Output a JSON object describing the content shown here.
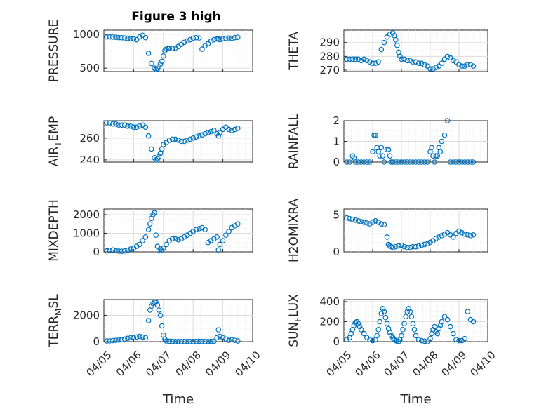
{
  "figure": {
    "title": "Figure 3 high",
    "x_axis_label": "Time",
    "marker_color": "#0072bd"
  },
  "chart_data": [
    {
      "type": "scatter",
      "title": "Figure 3 high",
      "ylabel": "PRESSURE",
      "xlabel": "",
      "xlim": [
        0,
        5
      ],
      "ylim": [
        450,
        1060
      ],
      "yticks": [
        500,
        1000
      ],
      "xticks": [
        "04/05",
        "04/06",
        "04/07",
        "04/08",
        "04/09",
        "04/10"
      ],
      "show_xticklabels": false,
      "x": [
        0.1,
        0.2,
        0.3,
        0.4,
        0.5,
        0.6,
        0.7,
        0.8,
        0.9,
        1.0,
        1.1,
        1.2,
        1.3,
        1.4,
        1.5,
        1.6,
        1.7,
        1.75,
        1.8,
        1.85,
        1.9,
        1.95,
        2.0,
        2.05,
        2.1,
        2.15,
        2.2,
        2.3,
        2.4,
        2.5,
        2.6,
        2.7,
        2.8,
        2.9,
        3.0,
        3.1,
        3.2,
        3.3,
        3.4,
        3.5,
        3.6,
        3.7,
        3.8,
        3.85,
        3.9,
        4.0,
        4.1,
        4.2,
        4.3,
        4.4,
        4.5
      ],
      "y": [
        960,
        960,
        958,
        955,
        950,
        948,
        945,
        940,
        935,
        930,
        920,
        960,
        985,
        950,
        720,
        570,
        500,
        480,
        490,
        520,
        560,
        600,
        680,
        760,
        780,
        790,
        790,
        790,
        795,
        820,
        850,
        880,
        900,
        920,
        940,
        950,
        945,
        780,
        830,
        860,
        900,
        920,
        930,
        930,
        920,
        935,
        940,
        945,
        940,
        950,
        955
      ],
      "grid": true
    },
    {
      "type": "scatter",
      "title": "",
      "ylabel": "THETA",
      "xlabel": "",
      "xlim": [
        0,
        5
      ],
      "ylim": [
        269,
        299
      ],
      "yticks": [
        270,
        280,
        290
      ],
      "xticks": [
        "04/05",
        "04/06",
        "04/07",
        "04/08",
        "04/09",
        "04/10"
      ],
      "show_xticklabels": false,
      "x": [
        0.1,
        0.2,
        0.3,
        0.4,
        0.5,
        0.6,
        0.7,
        0.8,
        0.9,
        1.0,
        1.1,
        1.2,
        1.3,
        1.4,
        1.5,
        1.6,
        1.7,
        1.75,
        1.8,
        1.85,
        1.9,
        1.95,
        2.0,
        2.1,
        2.2,
        2.3,
        2.4,
        2.5,
        2.6,
        2.7,
        2.8,
        2.9,
        3.0,
        3.1,
        3.2,
        3.3,
        3.4,
        3.5,
        3.6,
        3.7,
        3.8,
        3.9,
        4.0,
        4.1,
        4.2,
        4.3,
        4.4,
        4.5
      ],
      "y": [
        278,
        278,
        278,
        278,
        278,
        277,
        278,
        277,
        276,
        275,
        275,
        276,
        285,
        290,
        294,
        296,
        297,
        295,
        292,
        288,
        283,
        280,
        278,
        278,
        277,
        277,
        276,
        276,
        275,
        275,
        274,
        273,
        271,
        271,
        272,
        273,
        275,
        278,
        280,
        279,
        277,
        276,
        274,
        273,
        273,
        274,
        274,
        273
      ],
      "grid": true
    },
    {
      "type": "scatter",
      "title": "",
      "ylabel": "AIR_TEMP",
      "xlabel": "",
      "xlim": [
        0,
        5
      ],
      "ylim": [
        238,
        276
      ],
      "yticks": [
        240,
        260
      ],
      "xticks": [
        "04/05",
        "04/06",
        "04/07",
        "04/08",
        "04/09",
        "04/10"
      ],
      "show_xticklabels": false,
      "x": [
        0.1,
        0.2,
        0.3,
        0.4,
        0.5,
        0.6,
        0.7,
        0.8,
        0.9,
        1.0,
        1.1,
        1.2,
        1.3,
        1.4,
        1.5,
        1.6,
        1.7,
        1.75,
        1.8,
        1.85,
        1.9,
        1.95,
        2.0,
        2.1,
        2.2,
        2.3,
        2.4,
        2.5,
        2.6,
        2.7,
        2.8,
        2.9,
        3.0,
        3.1,
        3.2,
        3.3,
        3.4,
        3.5,
        3.6,
        3.7,
        3.8,
        3.85,
        3.9,
        4.0,
        4.1,
        4.2,
        4.3,
        4.4,
        4.5
      ],
      "y": [
        274,
        274,
        273,
        273,
        272,
        272,
        272,
        271,
        271,
        270,
        270,
        271,
        272,
        270,
        262,
        250,
        242,
        240,
        241,
        243,
        246,
        250,
        254,
        256,
        258,
        259,
        259,
        258,
        257,
        257,
        258,
        259,
        260,
        261,
        262,
        263,
        264,
        265,
        266,
        267,
        264,
        262,
        265,
        268,
        270,
        268,
        267,
        268,
        269
      ],
      "grid": true
    },
    {
      "type": "scatter",
      "title": "",
      "ylabel": "RAINFALL",
      "xlabel": "",
      "xlim": [
        0,
        5
      ],
      "ylim": [
        0,
        2
      ],
      "yticks": [
        0,
        1,
        2
      ],
      "xticks": [
        "04/05",
        "04/06",
        "04/07",
        "04/08",
        "04/09",
        "04/10"
      ],
      "show_xticklabels": false,
      "x": [
        0.1,
        0.2,
        0.3,
        0.35,
        0.4,
        0.5,
        0.6,
        0.7,
        0.8,
        0.9,
        1.0,
        1.05,
        1.1,
        1.15,
        1.2,
        1.25,
        1.3,
        1.35,
        1.4,
        1.5,
        1.55,
        1.6,
        1.65,
        1.7,
        1.8,
        1.9,
        2.0,
        2.1,
        2.2,
        2.3,
        2.4,
        2.5,
        2.6,
        2.7,
        2.8,
        2.9,
        3.0,
        3.05,
        3.1,
        3.15,
        3.2,
        3.25,
        3.3,
        3.35,
        3.4,
        3.5,
        3.6,
        3.7,
        3.8,
        3.9,
        4.0,
        4.1,
        4.2,
        4.3,
        4.4,
        4.5
      ],
      "y": [
        0,
        0,
        0.3,
        0.2,
        0,
        0,
        0,
        0,
        0,
        0,
        0.5,
        1.3,
        1.3,
        0.7,
        0.5,
        0.3,
        0.7,
        0.3,
        0,
        0.6,
        0.6,
        0.3,
        0,
        0,
        0,
        0,
        0,
        0,
        0,
        0,
        0,
        0,
        0,
        0,
        0,
        0,
        0.5,
        0.7,
        0.3,
        0,
        0.3,
        0.3,
        0.7,
        0.5,
        1.0,
        1.3,
        2.0,
        0,
        0,
        0,
        0,
        0,
        0,
        0,
        0,
        0
      ],
      "grid": true
    },
    {
      "type": "scatter",
      "title": "",
      "ylabel": "MIXDEPTH",
      "xlabel": "",
      "xlim": [
        0,
        5
      ],
      "ylim": [
        0,
        2300
      ],
      "yticks": [
        0,
        1000,
        2000
      ],
      "xticks": [
        "04/05",
        "04/06",
        "04/07",
        "04/08",
        "04/09",
        "04/10"
      ],
      "show_xticklabels": false,
      "x": [
        0.1,
        0.2,
        0.3,
        0.4,
        0.5,
        0.6,
        0.7,
        0.8,
        0.9,
        1.0,
        1.1,
        1.2,
        1.3,
        1.4,
        1.5,
        1.55,
        1.6,
        1.65,
        1.7,
        1.75,
        1.8,
        1.85,
        1.9,
        1.95,
        2.0,
        2.1,
        2.2,
        2.3,
        2.4,
        2.5,
        2.6,
        2.7,
        2.8,
        2.9,
        3.0,
        3.1,
        3.2,
        3.3,
        3.4,
        3.5,
        3.6,
        3.7,
        3.8,
        3.85,
        3.9,
        4.0,
        4.1,
        4.2,
        4.3,
        4.4,
        4.5
      ],
      "y": [
        50,
        80,
        100,
        60,
        40,
        30,
        50,
        80,
        150,
        200,
        300,
        400,
        600,
        800,
        1200,
        1500,
        1800,
        2000,
        2100,
        900,
        300,
        100,
        150,
        100,
        200,
        400,
        600,
        700,
        700,
        650,
        700,
        800,
        900,
        1000,
        1100,
        1200,
        1250,
        1300,
        1200,
        500,
        600,
        700,
        800,
        100,
        400,
        600,
        900,
        1100,
        1300,
        1400,
        1500
      ],
      "grid": true
    },
    {
      "type": "scatter",
      "title": "",
      "ylabel": "H2OMIXRA",
      "xlabel": "",
      "xlim": [
        0,
        5
      ],
      "ylim": [
        0,
        5.8
      ],
      "yticks": [
        0,
        5
      ],
      "xticks": [
        "04/05",
        "04/06",
        "04/07",
        "04/08",
        "04/09",
        "04/10"
      ],
      "show_xticklabels": false,
      "x": [
        0.1,
        0.2,
        0.3,
        0.4,
        0.5,
        0.6,
        0.7,
        0.8,
        0.9,
        1.0,
        1.1,
        1.2,
        1.3,
        1.4,
        1.5,
        1.55,
        1.6,
        1.65,
        1.7,
        1.8,
        1.9,
        2.0,
        2.1,
        2.2,
        2.3,
        2.4,
        2.5,
        2.6,
        2.7,
        2.8,
        2.9,
        3.0,
        3.1,
        3.2,
        3.3,
        3.4,
        3.5,
        3.6,
        3.7,
        3.8,
        3.9,
        4.0,
        4.1,
        4.2,
        4.3,
        4.4,
        4.5
      ],
      "y": [
        4.6,
        4.5,
        4.4,
        4.3,
        4.2,
        4.1,
        4.0,
        3.9,
        3.8,
        4.0,
        4.2,
        4.0,
        3.8,
        3.7,
        2.0,
        1.0,
        0.8,
        0.7,
        0.6,
        0.7,
        0.8,
        0.9,
        0.7,
        0.6,
        0.6,
        0.7,
        0.7,
        0.8,
        0.9,
        1.0,
        1.1,
        1.3,
        1.5,
        1.8,
        2.0,
        2.2,
        2.4,
        2.6,
        2.3,
        2.0,
        2.5,
        2.8,
        2.6,
        2.4,
        2.3,
        2.2,
        2.3
      ],
      "grid": true
    },
    {
      "type": "scatter",
      "title": "",
      "ylabel": "TERR_MSL",
      "xlabel": "Time",
      "xlim": [
        0,
        5
      ],
      "ylim": [
        0,
        3200
      ],
      "yticks": [
        0,
        2000
      ],
      "xticks": [
        "04/05",
        "04/06",
        "04/07",
        "04/08",
        "04/09",
        "04/10"
      ],
      "show_xticklabels": true,
      "x": [
        0.1,
        0.2,
        0.3,
        0.4,
        0.5,
        0.6,
        0.7,
        0.8,
        0.9,
        1.0,
        1.1,
        1.2,
        1.3,
        1.4,
        1.5,
        1.55,
        1.6,
        1.65,
        1.7,
        1.75,
        1.8,
        1.85,
        1.9,
        1.95,
        2.0,
        2.05,
        2.1,
        2.2,
        2.3,
        2.4,
        2.5,
        2.6,
        2.7,
        2.8,
        2.9,
        3.0,
        3.1,
        3.2,
        3.3,
        3.4,
        3.5,
        3.6,
        3.7,
        3.8,
        3.85,
        3.9,
        4.0,
        4.1,
        4.2,
        4.3,
        4.4,
        4.5
      ],
      "y": [
        50,
        60,
        80,
        100,
        120,
        150,
        200,
        250,
        300,
        300,
        350,
        400,
        350,
        300,
        1600,
        2400,
        2700,
        2900,
        3000,
        3000,
        2800,
        2400,
        2000,
        1200,
        500,
        200,
        50,
        30,
        20,
        10,
        10,
        10,
        20,
        20,
        10,
        10,
        20,
        30,
        20,
        10,
        10,
        20,
        30,
        300,
        900,
        400,
        300,
        200,
        100,
        150,
        100,
        50
      ],
      "grid": true
    },
    {
      "type": "scatter",
      "title": "",
      "ylabel": "SUN_FLUX",
      "xlabel": "Time",
      "xlim": [
        0,
        5
      ],
      "ylim": [
        0,
        420
      ],
      "yticks": [
        0,
        200,
        400
      ],
      "xticks": [
        "04/05",
        "04/06",
        "04/07",
        "04/08",
        "04/09",
        "04/10"
      ],
      "show_xticklabels": true,
      "x": [
        0.1,
        0.2,
        0.25,
        0.3,
        0.35,
        0.4,
        0.45,
        0.5,
        0.55,
        0.6,
        0.7,
        0.8,
        0.9,
        1.0,
        1.1,
        1.15,
        1.2,
        1.25,
        1.3,
        1.35,
        1.4,
        1.45,
        1.5,
        1.55,
        1.6,
        1.65,
        1.7,
        1.75,
        1.8,
        1.85,
        1.9,
        1.95,
        2.0,
        2.05,
        2.1,
        2.15,
        2.2,
        2.25,
        2.3,
        2.35,
        2.4,
        2.45,
        2.5,
        2.6,
        2.7,
        2.8,
        2.9,
        3.0,
        3.05,
        3.1,
        3.15,
        3.2,
        3.25,
        3.3,
        3.35,
        3.4,
        3.5,
        3.6,
        3.7,
        3.8,
        3.9,
        4.0,
        4.1,
        4.2,
        4.3,
        4.4,
        4.5
      ],
      "y": [
        20,
        40,
        80,
        120,
        160,
        190,
        200,
        180,
        150,
        120,
        80,
        40,
        20,
        10,
        20,
        60,
        120,
        200,
        280,
        330,
        300,
        240,
        180,
        130,
        90,
        60,
        40,
        20,
        10,
        5,
        0,
        20,
        60,
        120,
        180,
        250,
        300,
        330,
        300,
        250,
        180,
        120,
        60,
        20,
        10,
        5,
        0,
        30,
        80,
        120,
        150,
        100,
        80,
        130,
        160,
        200,
        250,
        220,
        150,
        80,
        20,
        10,
        10,
        30,
        300,
        220,
        200
      ],
      "grid": true
    }
  ]
}
